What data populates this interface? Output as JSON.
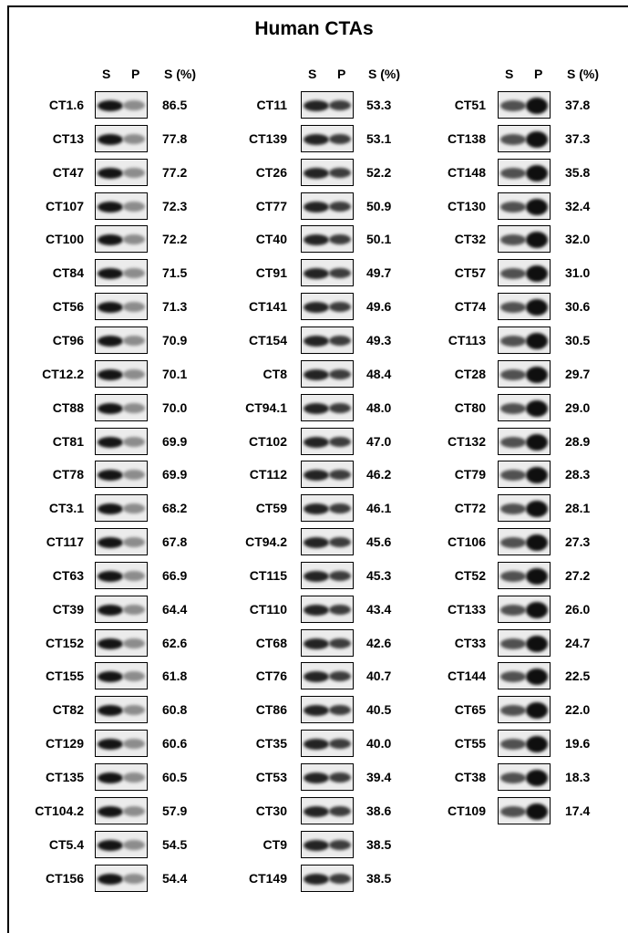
{
  "title": "Human CTAs",
  "panels": [
    {
      "headers": [
        "S",
        "P",
        "S (%)"
      ],
      "rows": [
        [
          "CT1.6",
          "86.5"
        ],
        [
          "CT13",
          "77.8"
        ],
        [
          "CT47",
          "77.2"
        ],
        [
          "CT107",
          "72.3"
        ],
        [
          "CT100",
          "72.2"
        ],
        [
          "CT84",
          "71.5"
        ],
        [
          "CT56",
          "71.3"
        ],
        [
          "CT96",
          "70.9"
        ],
        [
          "CT12.2",
          "70.1"
        ],
        [
          "CT88",
          "70.0"
        ],
        [
          "CT81",
          "69.9"
        ],
        [
          "CT78",
          "69.9"
        ],
        [
          "CT3.1",
          "68.2"
        ],
        [
          "CT117",
          "67.8"
        ],
        [
          "CT63",
          "66.9"
        ],
        [
          "CT39",
          "64.4"
        ],
        [
          "CT152",
          "62.6"
        ],
        [
          "CT155",
          "61.8"
        ],
        [
          "CT82",
          "60.8"
        ],
        [
          "CT129",
          "60.6"
        ],
        [
          "CT135",
          "60.5"
        ],
        [
          "CT104.2",
          "57.9"
        ],
        [
          "CT5.4",
          "54.5"
        ],
        [
          "CT156",
          "54.4"
        ]
      ]
    },
    {
      "headers": [
        "S",
        "P",
        "S (%)"
      ],
      "rows": [
        [
          "CT11",
          "53.3"
        ],
        [
          "CT139",
          "53.1"
        ],
        [
          "CT26",
          "52.2"
        ],
        [
          "CT77",
          "50.9"
        ],
        [
          "CT40",
          "50.1"
        ],
        [
          "CT91",
          "49.7"
        ],
        [
          "CT141",
          "49.6"
        ],
        [
          "CT154",
          "49.3"
        ],
        [
          "CT8",
          "48.4"
        ],
        [
          "CT94.1",
          "48.0"
        ],
        [
          "CT102",
          "47.0"
        ],
        [
          "CT112",
          "46.2"
        ],
        [
          "CT59",
          "46.1"
        ],
        [
          "CT94.2",
          "45.6"
        ],
        [
          "CT115",
          "45.3"
        ],
        [
          "CT110",
          "43.4"
        ],
        [
          "CT68",
          "42.6"
        ],
        [
          "CT76",
          "40.7"
        ],
        [
          "CT86",
          "40.5"
        ],
        [
          "CT35",
          "40.0"
        ],
        [
          "CT53",
          "39.4"
        ],
        [
          "CT30",
          "38.6"
        ],
        [
          "CT9",
          "38.5"
        ],
        [
          "CT149",
          "38.5"
        ]
      ]
    },
    {
      "headers": [
        "S",
        "P",
        "S (%)"
      ],
      "rows": [
        [
          "CT51",
          "37.8"
        ],
        [
          "CT138",
          "37.3"
        ],
        [
          "CT148",
          "35.8"
        ],
        [
          "CT130",
          "32.4"
        ],
        [
          "CT32",
          "32.0"
        ],
        [
          "CT57",
          "31.0"
        ],
        [
          "CT74",
          "30.6"
        ],
        [
          "CT113",
          "30.5"
        ],
        [
          "CT28",
          "29.7"
        ],
        [
          "CT80",
          "29.0"
        ],
        [
          "CT132",
          "28.9"
        ],
        [
          "CT79",
          "28.3"
        ],
        [
          "CT72",
          "28.1"
        ],
        [
          "CT106",
          "27.3"
        ],
        [
          "CT52",
          "27.2"
        ],
        [
          "CT133",
          "26.0"
        ],
        [
          "CT33",
          "24.7"
        ],
        [
          "CT144",
          "22.5"
        ],
        [
          "CT65",
          "22.0"
        ],
        [
          "CT55",
          "19.6"
        ],
        [
          "CT38",
          "18.3"
        ],
        [
          "CT109",
          "17.4"
        ]
      ]
    }
  ]
}
